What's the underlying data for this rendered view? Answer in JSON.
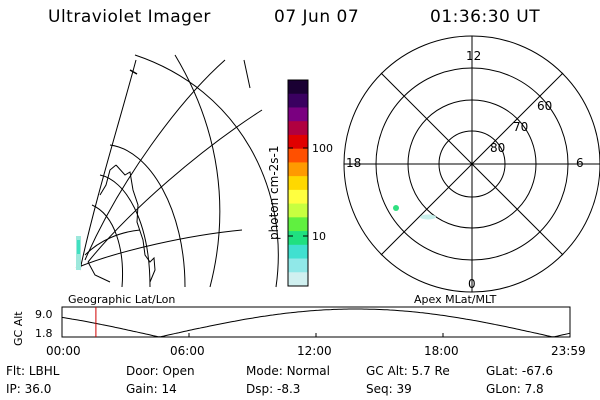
{
  "header": {
    "instrument": "Ultraviolet Imager",
    "date": "07 Jun 07",
    "time": "01:36:30 UT"
  },
  "geo_panel": {
    "label": "Geographic Lat/Lon"
  },
  "apex_panel": {
    "label": "Apex MLat/MLT",
    "mlt_labels": {
      "top": "12",
      "left": "18",
      "right": "6",
      "bottom": "0"
    },
    "mlat_labels": [
      "60",
      "70",
      "80"
    ]
  },
  "colorbar": {
    "unit_label": "photon cm-2s-1",
    "ticks": [
      "100",
      "10"
    ],
    "colors": [
      "#1a0033",
      "#3a0060",
      "#7a0080",
      "#b00040",
      "#e00000",
      "#ff5000",
      "#ff9a00",
      "#ffd800",
      "#ffff40",
      "#c8ff40",
      "#60f040",
      "#20e080",
      "#40e0d0",
      "#90e8e8",
      "#d0f0f0"
    ]
  },
  "altitude_plot": {
    "ylabel": "GC Alt",
    "yticks": [
      "9.0",
      "1.8"
    ],
    "xticks": [
      "00:00",
      "06:00",
      "12:00",
      "18:00",
      "23:59"
    ],
    "cursor_time_hours": 1.6
  },
  "status": {
    "row1": [
      {
        "key": "Flt:",
        "value": "LBHL"
      },
      {
        "key": "Door:",
        "value": "Open"
      },
      {
        "key": "Mode:",
        "value": "Normal"
      },
      {
        "key": "GC Alt:",
        "value": "5.7 Re"
      },
      {
        "key": "GLat:",
        "value": "-67.6"
      }
    ],
    "row2": [
      {
        "key": "IP:",
        "value": "36.0"
      },
      {
        "key": "Gain:",
        "value": "14"
      },
      {
        "key": "Dsp:",
        "value": "-8.3"
      },
      {
        "key": "Seq:",
        "value": "39"
      },
      {
        "key": "GLon:",
        "value": "7.8"
      }
    ]
  }
}
